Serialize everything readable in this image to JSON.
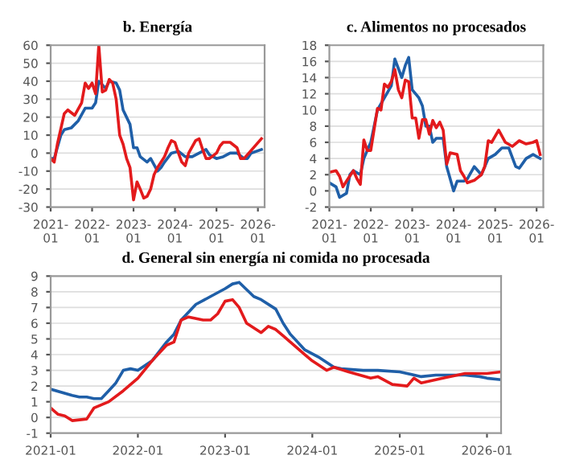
{
  "chart_data": [
    {
      "type": "line",
      "title": "b. Energía",
      "grid": "y",
      "xlim": [
        "2021-01",
        "2026-03"
      ],
      "ylim": [
        -30,
        60
      ],
      "yticks": [
        -30,
        -20,
        -10,
        0,
        10,
        20,
        30,
        40,
        50,
        60
      ],
      "xticks": [
        {
          "value": "2021-01",
          "label": "2021-\n01"
        },
        {
          "value": "2022-01",
          "label": "2022-\n01"
        },
        {
          "value": "2023-01",
          "label": "2023-\n01"
        },
        {
          "value": "2024-01",
          "label": "2024-\n01"
        },
        {
          "value": "2025-01",
          "label": "2025-\n01"
        },
        {
          "value": "2026-01",
          "label": "2026-\n01"
        }
      ],
      "series": [
        {
          "color": "#1f5fa8",
          "x": [
            "2021-01",
            "2021-02",
            "2021-04",
            "2021-05",
            "2021-07",
            "2021-09",
            "2021-11",
            "2022-01",
            "2022-02",
            "2022-03",
            "2022-05",
            "2022-06",
            "2022-08",
            "2022-09",
            "2022-10",
            "2022-12",
            "2023-01",
            "2023-02",
            "2023-03",
            "2023-05",
            "2023-06",
            "2023-08",
            "2023-09",
            "2023-10",
            "2023-12",
            "2024-02",
            "2024-04",
            "2024-06",
            "2024-08",
            "2024-10",
            "2024-11",
            "2025-01",
            "2025-03",
            "2025-05",
            "2025-07",
            "2025-09",
            "2025-10",
            "2025-11",
            "2026-02"
          ],
          "values": [
            -3,
            -3,
            10,
            13,
            14,
            18,
            25,
            25,
            28,
            40,
            36,
            40,
            39,
            35,
            24,
            16,
            3,
            3,
            -2,
            -5,
            -3,
            -10,
            -8,
            -5,
            0,
            1,
            -2,
            -2,
            0,
            2,
            -1,
            -3,
            -2,
            0,
            0,
            -3,
            -3,
            0,
            2
          ]
        },
        {
          "color": "#e31a1c",
          "x": [
            "2021-01",
            "2021-02",
            "2021-03",
            "2021-05",
            "2021-06",
            "2021-08",
            "2021-10",
            "2021-11",
            "2021-12",
            "2022-01",
            "2022-02",
            "2022-03",
            "2022-04",
            "2022-05",
            "2022-06",
            "2022-07",
            "2022-08",
            "2022-09",
            "2022-10",
            "2022-11",
            "2022-12",
            "2023-01",
            "2023-02",
            "2023-03",
            "2023-04",
            "2023-05",
            "2023-06",
            "2023-07",
            "2023-08",
            "2023-09",
            "2023-10",
            "2023-11",
            "2023-12",
            "2024-01",
            "2024-02",
            "2024-03",
            "2024-04",
            "2024-05",
            "2024-07",
            "2024-08",
            "2024-09",
            "2024-10",
            "2024-11",
            "2025-01",
            "2025-02",
            "2025-03",
            "2025-05",
            "2025-07",
            "2025-08",
            "2025-09",
            "2026-02"
          ],
          "values": [
            -3,
            -5,
            5,
            22,
            24,
            21,
            28,
            39,
            36,
            39,
            33,
            60,
            34,
            35,
            41,
            39,
            30,
            10,
            5,
            -3,
            -8,
            -26,
            -16,
            -20,
            -25,
            -24,
            -20,
            -12,
            -8,
            -5,
            -2,
            3,
            7,
            6,
            0,
            -5,
            -7,
            0,
            7,
            8,
            2,
            -3,
            -3,
            0,
            4,
            6,
            6,
            3,
            -3,
            -3,
            8
          ]
        }
      ]
    },
    {
      "type": "line",
      "title": "c. Alimentos no procesados",
      "grid": "y",
      "xlim": [
        "2021-01",
        "2026-03"
      ],
      "ylim": [
        -2,
        18
      ],
      "yticks": [
        -2,
        0,
        2,
        4,
        6,
        8,
        10,
        12,
        14,
        16,
        18
      ],
      "xticks": [
        {
          "value": "2021-01",
          "label": "2021-\n01"
        },
        {
          "value": "2022-01",
          "label": "2022-\n01"
        },
        {
          "value": "2023-01",
          "label": "2023-\n01"
        },
        {
          "value": "2024-01",
          "label": "2024-\n01"
        },
        {
          "value": "2025-01",
          "label": "2025-\n01"
        },
        {
          "value": "2026-01",
          "label": "2026-\n01"
        }
      ],
      "series": [
        {
          "color": "#1f5fa8",
          "x": [
            "2021-01",
            "2021-03",
            "2021-04",
            "2021-06",
            "2021-07",
            "2021-08",
            "2021-10",
            "2021-11",
            "2021-12",
            "2022-01",
            "2022-03",
            "2022-05",
            "2022-07",
            "2022-08",
            "2022-10",
            "2022-11",
            "2022-12",
            "2023-01",
            "2023-03",
            "2023-04",
            "2023-05",
            "2023-06",
            "2023-07",
            "2023-08",
            "2023-10",
            "2023-11",
            "2024-01",
            "2024-02",
            "2024-04",
            "2024-05",
            "2024-07",
            "2024-09",
            "2024-11",
            "2025-01",
            "2025-03",
            "2025-05",
            "2025-07",
            "2025-08",
            "2025-10",
            "2025-12",
            "2026-02"
          ],
          "values": [
            1,
            0.5,
            -0.8,
            -0.3,
            2,
            2.5,
            2,
            4,
            5,
            6,
            10,
            11.5,
            13,
            16.3,
            14,
            15.5,
            16.5,
            12.5,
            11.5,
            10.5,
            8,
            8,
            6,
            6.5,
            6.5,
            3,
            0,
            1.2,
            1.2,
            1.5,
            3,
            2,
            4,
            4.5,
            5.3,
            5.3,
            3,
            2.8,
            4,
            4.5,
            4
          ]
        },
        {
          "color": "#e31a1c",
          "x": [
            "2021-01",
            "2021-03",
            "2021-04",
            "2021-05",
            "2021-06",
            "2021-08",
            "2021-09",
            "2021-10",
            "2021-11",
            "2021-12",
            "2022-01",
            "2022-03",
            "2022-04",
            "2022-05",
            "2022-06",
            "2022-07",
            "2022-08",
            "2022-09",
            "2022-10",
            "2022-11",
            "2022-12",
            "2023-01",
            "2023-02",
            "2023-03",
            "2023-04",
            "2023-05",
            "2023-06",
            "2023-07",
            "2023-08",
            "2023-09",
            "2023-10",
            "2023-11",
            "2023-12",
            "2024-02",
            "2024-03",
            "2024-04",
            "2024-05",
            "2024-07",
            "2024-09",
            "2024-10",
            "2024-11",
            "2024-12",
            "2025-02",
            "2025-04",
            "2025-06",
            "2025-08",
            "2025-10",
            "2025-12",
            "2026-01",
            "2026-02"
          ],
          "values": [
            2.3,
            2.5,
            1.8,
            0.5,
            1.2,
            2.5,
            1.5,
            0.8,
            6.3,
            5,
            5,
            10.2,
            10,
            13.2,
            12.8,
            13.5,
            15,
            12.5,
            11.5,
            13.7,
            13.5,
            9,
            9,
            6.5,
            8.8,
            8.8,
            7,
            8.7,
            7.8,
            8.5,
            7.5,
            3.3,
            4.7,
            4.5,
            2.5,
            1.8,
            1,
            1.3,
            2,
            3,
            6.2,
            6,
            7.5,
            6,
            5.5,
            6.2,
            5.8,
            6,
            6.2,
            4.5
          ]
        }
      ]
    },
    {
      "type": "line",
      "title": "d. General sin energía ni comida no procesada",
      "grid": "y",
      "xlim": [
        "2021-01",
        "2026-03"
      ],
      "ylim": [
        -1,
        9
      ],
      "yticks": [
        -1,
        0,
        1,
        2,
        3,
        4,
        5,
        6,
        7,
        8,
        9
      ],
      "xticks": [
        {
          "value": "2021-01",
          "label": "2021-01"
        },
        {
          "value": "2022-01",
          "label": "2022-01"
        },
        {
          "value": "2023-01",
          "label": "2023-01"
        },
        {
          "value": "2024-01",
          "label": "2024-01"
        },
        {
          "value": "2025-01",
          "label": "2025-01"
        },
        {
          "value": "2026-01",
          "label": "2026-01"
        }
      ],
      "series": [
        {
          "color": "#1f5fa8",
          "x": [
            "2021-01",
            "2021-04",
            "2021-05",
            "2021-06",
            "2021-07",
            "2021-08",
            "2021-09",
            "2021-10",
            "2021-11",
            "2021-12",
            "2022-01",
            "2022-03",
            "2022-05",
            "2022-06",
            "2022-07",
            "2022-09",
            "2022-11",
            "2023-01",
            "2023-02",
            "2023-03",
            "2023-05",
            "2023-06",
            "2023-08",
            "2023-09",
            "2023-10",
            "2023-12",
            "2024-02",
            "2024-04",
            "2024-05",
            "2024-08",
            "2024-10",
            "2025-01",
            "2025-04",
            "2025-06",
            "2025-10",
            "2025-12",
            "2026-01",
            "2026-03"
          ],
          "values": [
            1.8,
            1.4,
            1.3,
            1.3,
            1.2,
            1.2,
            1.7,
            2.2,
            3.0,
            3.1,
            3.0,
            3.6,
            4.8,
            5.3,
            6.2,
            7.2,
            7.7,
            8.2,
            8.5,
            8.6,
            7.7,
            7.5,
            6.9,
            6.0,
            5.3,
            4.3,
            3.8,
            3.2,
            3.1,
            3.0,
            3.0,
            2.9,
            2.6,
            2.7,
            2.7,
            2.6,
            2.5,
            2.4
          ]
        },
        {
          "color": "#e31a1c",
          "x": [
            "2021-01",
            "2021-02",
            "2021-03",
            "2021-04",
            "2021-06",
            "2021-07",
            "2021-09",
            "2021-11",
            "2022-01",
            "2022-03",
            "2022-05",
            "2022-06",
            "2022-07",
            "2022-08",
            "2022-10",
            "2022-11",
            "2022-12",
            "2023-01",
            "2023-02",
            "2023-03",
            "2023-04",
            "2023-06",
            "2023-07",
            "2023-08",
            "2023-09",
            "2023-10",
            "2023-12",
            "2024-01",
            "2024-03",
            "2024-04",
            "2024-06",
            "2024-09",
            "2024-10",
            "2024-12",
            "2025-02",
            "2025-03",
            "2025-04",
            "2025-07",
            "2025-10",
            "2026-01",
            "2026-03"
          ],
          "values": [
            0.6,
            0.2,
            0.1,
            -0.2,
            -0.1,
            0.6,
            1.0,
            1.7,
            2.5,
            3.6,
            4.6,
            4.8,
            6.2,
            6.4,
            6.2,
            6.2,
            6.6,
            7.4,
            7.5,
            7.0,
            6.0,
            5.4,
            5.8,
            5.6,
            5.2,
            4.8,
            4.0,
            3.6,
            3.0,
            3.2,
            2.9,
            2.5,
            2.6,
            2.1,
            2.0,
            2.5,
            2.2,
            2.5,
            2.8,
            2.8,
            2.9
          ]
        }
      ]
    }
  ]
}
